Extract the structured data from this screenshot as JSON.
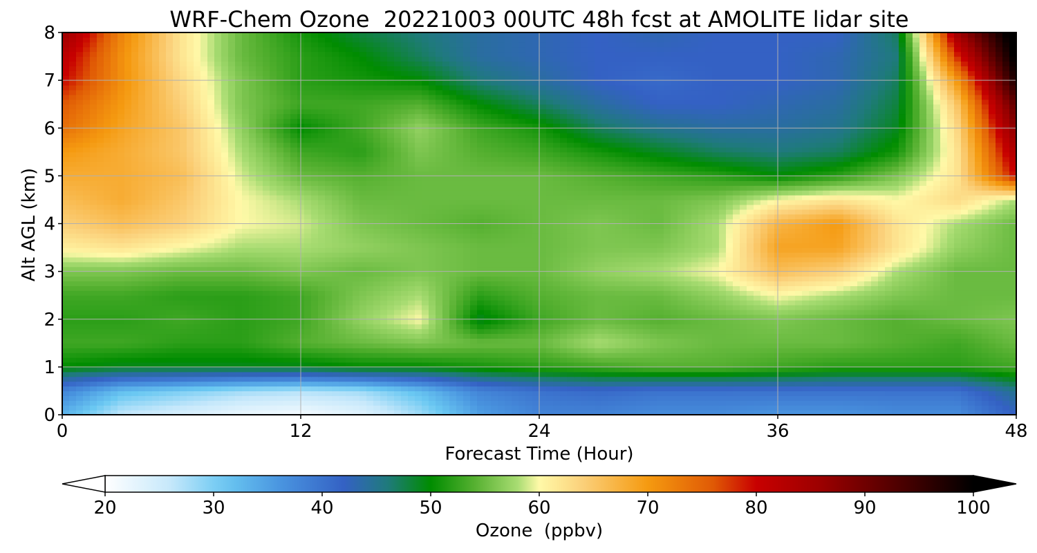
{
  "chart_data": {
    "type": "heatmap",
    "title": "WRF-Chem Ozone  20221003 00UTC 48h fcst at AMOLITE lidar site",
    "xlabel": "Forecast Time (Hour)",
    "ylabel": "Alt AGL (km)",
    "xlim": [
      0,
      48
    ],
    "ylim": [
      0,
      8
    ],
    "xticks": [
      0,
      12,
      24,
      36,
      48
    ],
    "yticks": [
      0,
      1,
      2,
      3,
      4,
      5,
      6,
      7,
      8
    ],
    "grid": true,
    "colorbar": {
      "label": "Ozone  (ppbv)",
      "range": [
        20,
        100
      ],
      "ticks": [
        20,
        30,
        40,
        50,
        60,
        70,
        80,
        90,
        100
      ],
      "extend": "both",
      "colors": [
        [
          20,
          "#ffffff"
        ],
        [
          26,
          "#c6e8fb"
        ],
        [
          31,
          "#6ac8f2"
        ],
        [
          36,
          "#4a96e0"
        ],
        [
          42,
          "#3461c4"
        ],
        [
          46,
          "#1f7a7c"
        ],
        [
          50,
          "#008c00"
        ],
        [
          54,
          "#55b030"
        ],
        [
          58,
          "#a8dc72"
        ],
        [
          60,
          "#fff9a8"
        ],
        [
          64,
          "#fbd07a"
        ],
        [
          70,
          "#f59a10"
        ],
        [
          76,
          "#e05a05"
        ],
        [
          80,
          "#c80000"
        ],
        [
          86,
          "#9b0000"
        ],
        [
          92,
          "#5a0000"
        ],
        [
          100,
          "#000000"
        ]
      ]
    },
    "x": [
      0,
      3,
      6,
      9,
      12,
      15,
      18,
      21,
      24,
      27,
      30,
      33,
      36,
      39,
      42,
      45,
      48
    ],
    "y": [
      0,
      0.5,
      1,
      1.5,
      2,
      2.5,
      3,
      3.5,
      4,
      4.5,
      5,
      5.5,
      6,
      6.5,
      7,
      7.5,
      8
    ],
    "z": [
      [
        33,
        26,
        24,
        22,
        21,
        23,
        28,
        35,
        38,
        38,
        37,
        37,
        36,
        36,
        37,
        37,
        42
      ],
      [
        38,
        32,
        30,
        28,
        27,
        28,
        32,
        38,
        40,
        41,
        40,
        40,
        40,
        40,
        40,
        40,
        45
      ],
      [
        50,
        49,
        49,
        49,
        49,
        50,
        50,
        51,
        52,
        53,
        54,
        54,
        53,
        52,
        52,
        52,
        53
      ],
      [
        53,
        53,
        52,
        52,
        54,
        55,
        56,
        55,
        55,
        58,
        56,
        55,
        55,
        55,
        54,
        53,
        55
      ],
      [
        52,
        52,
        53,
        52,
        53,
        57,
        60,
        49,
        53,
        55,
        54,
        55,
        56,
        55,
        54,
        55,
        56
      ],
      [
        53,
        53,
        52,
        52,
        53,
        56,
        58,
        52,
        54,
        55,
        55,
        57,
        60,
        58,
        56,
        55,
        55
      ],
      [
        56,
        56,
        55,
        55,
        56,
        55,
        56,
        55,
        55,
        57,
        58,
        60,
        66,
        64,
        58,
        55,
        55
      ],
      [
        61,
        62,
        60,
        58,
        58,
        57,
        56,
        55,
        55,
        56,
        56,
        58,
        69,
        69,
        62,
        57,
        55
      ],
      [
        64,
        66,
        64,
        60,
        59,
        56,
        55,
        54,
        55,
        56,
        55,
        58,
        67,
        70,
        62,
        58,
        55
      ],
      [
        66,
        68,
        65,
        60,
        58,
        55,
        55,
        55,
        55,
        55,
        55,
        56,
        60,
        62,
        60,
        63,
        58
      ],
      [
        68,
        68,
        66,
        59,
        55,
        54,
        55,
        55,
        55,
        54,
        53,
        52,
        50,
        52,
        56,
        62,
        80
      ],
      [
        70,
        68,
        65,
        58,
        53,
        52,
        56,
        54,
        53,
        51,
        49,
        47,
        46,
        47,
        51,
        62,
        84
      ],
      [
        74,
        69,
        65,
        57,
        50,
        53,
        57,
        53,
        51,
        47,
        45,
        44,
        44,
        45,
        49,
        63,
        88
      ],
      [
        76,
        70,
        64,
        56,
        53,
        53,
        54,
        50,
        47,
        44,
        42,
        42,
        43,
        44,
        48,
        65,
        92
      ],
      [
        80,
        71,
        63,
        56,
        52,
        51,
        50,
        46,
        44,
        42,
        41,
        42,
        42,
        43,
        47,
        70,
        98
      ],
      [
        82,
        71,
        62,
        55,
        52,
        50,
        47,
        44,
        43,
        42,
        42,
        42,
        42,
        43,
        46,
        78,
        101
      ],
      [
        86,
        72,
        62,
        55,
        51,
        48,
        46,
        44,
        43,
        42,
        43,
        42,
        42,
        42,
        47,
        85,
        103
      ]
    ]
  }
}
